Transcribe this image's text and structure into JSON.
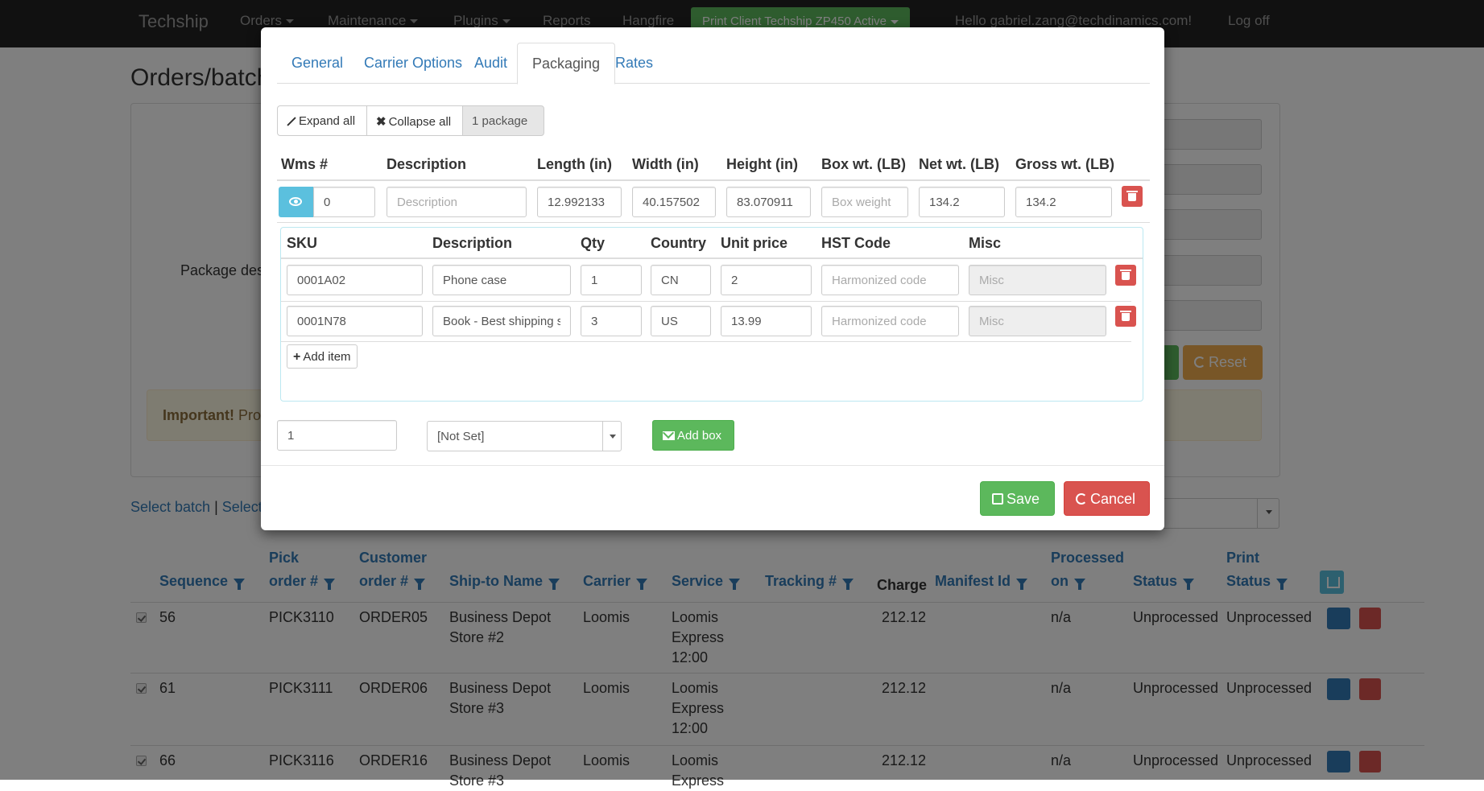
{
  "navbar": {
    "brand": "Techship",
    "items": [
      "Orders",
      "Maintenance",
      "Plugins",
      "Reports",
      "Hangfire"
    ],
    "print_client": "Print Client Techship ZP450 Active",
    "greeting": "Hello gabriel.zang@techdinamics.com!",
    "logoff": "Log off"
  },
  "page": {
    "title": "Orders/batch",
    "package_label": "Package des",
    "reset_label": "Reset",
    "alert_strong": "Important!",
    "alert_text": "Pro",
    "select_batch": "Select batch",
    "separator": " | ",
    "select_other": "Select"
  },
  "orders_table": {
    "headers": {
      "sequence": "Sequence",
      "pick_order": "Pick\norder #",
      "customer_order": "Customer\norder #",
      "ship_to": "Ship-to Name",
      "carrier": "Carrier",
      "service": "Service",
      "tracking": "Tracking #",
      "charge": "Charge",
      "manifest": "Manifest Id",
      "processed_on": "Processed\non",
      "status": "Status",
      "print_status": "Print\nStatus"
    },
    "rows": [
      {
        "sequence": "56",
        "pick_order": "PICK3110",
        "customer_order": "ORDER05",
        "ship_to": "Business Depot\nStore #2",
        "carrier": "Loomis",
        "service": "Loomis\nExpress\n12:00",
        "charge": "212.12",
        "processed_on": "n/a",
        "status": "Unprocessed",
        "print_status": "Unprocessed"
      },
      {
        "sequence": "61",
        "pick_order": "PICK3111",
        "customer_order": "ORDER06",
        "ship_to": "Business Depot\nStore #3",
        "carrier": "Loomis",
        "service": "Loomis\nExpress\n12:00",
        "charge": "212.12",
        "processed_on": "n/a",
        "status": "Unprocessed",
        "print_status": "Unprocessed"
      },
      {
        "sequence": "66",
        "pick_order": "PICK3116",
        "customer_order": "ORDER16",
        "ship_to": "Business Depot\nStore #3",
        "carrier": "Loomis",
        "service": "Loomis\nExpress",
        "charge": "212.12",
        "processed_on": "n/a",
        "status": "Unprocessed",
        "print_status": "Unprocessed"
      }
    ]
  },
  "modal": {
    "tabs": [
      "General",
      "Carrier Options",
      "Audit",
      "Packaging",
      "Rates"
    ],
    "active_tab": "Packaging",
    "expand_all": "Expand all",
    "collapse_all": "Collapse all",
    "package_count": "1 package",
    "package_headers": {
      "wms": "Wms #",
      "description": "Description",
      "length": "Length (in)",
      "width": "Width (in)",
      "height": "Height (in)",
      "box_wt": "Box wt. (LB)",
      "net_wt": "Net wt. (LB)",
      "gross_wt": "Gross wt. (LB)"
    },
    "package": {
      "wms": "0",
      "description_placeholder": "Description",
      "length": "12.992133",
      "width": "40.157502",
      "height": "83.070911",
      "box_weight_placeholder": "Box weight",
      "net_wt": "134.2",
      "gross_wt": "134.2"
    },
    "item_headers": {
      "sku": "SKU",
      "description": "Description",
      "qty": "Qty",
      "country": "Country",
      "unit_price": "Unit price",
      "hst_code": "HST Code",
      "misc": "Misc"
    },
    "items": [
      {
        "sku": "0001A02",
        "description": "Phone case",
        "qty": "1",
        "country": "CN",
        "unit_price": "2",
        "hst_placeholder": "Harmonized code",
        "misc_placeholder": "Misc"
      },
      {
        "sku": "0001N78",
        "description": "Book - Best shipping s",
        "qty": "3",
        "country": "US",
        "unit_price": "13.99",
        "hst_placeholder": "Harmonized code",
        "misc_placeholder": "Misc"
      }
    ],
    "add_item": "Add item",
    "box_quantity": "1",
    "box_type_selected": "[Not Set]",
    "add_box": "Add box",
    "save": "Save",
    "cancel": "Cancel"
  },
  "colors": {
    "primary": "#337ab7",
    "success": "#5cb85c",
    "danger": "#d9534f",
    "info": "#5bc0de",
    "warning": "#f0ad4e",
    "navbar": "#222222"
  }
}
